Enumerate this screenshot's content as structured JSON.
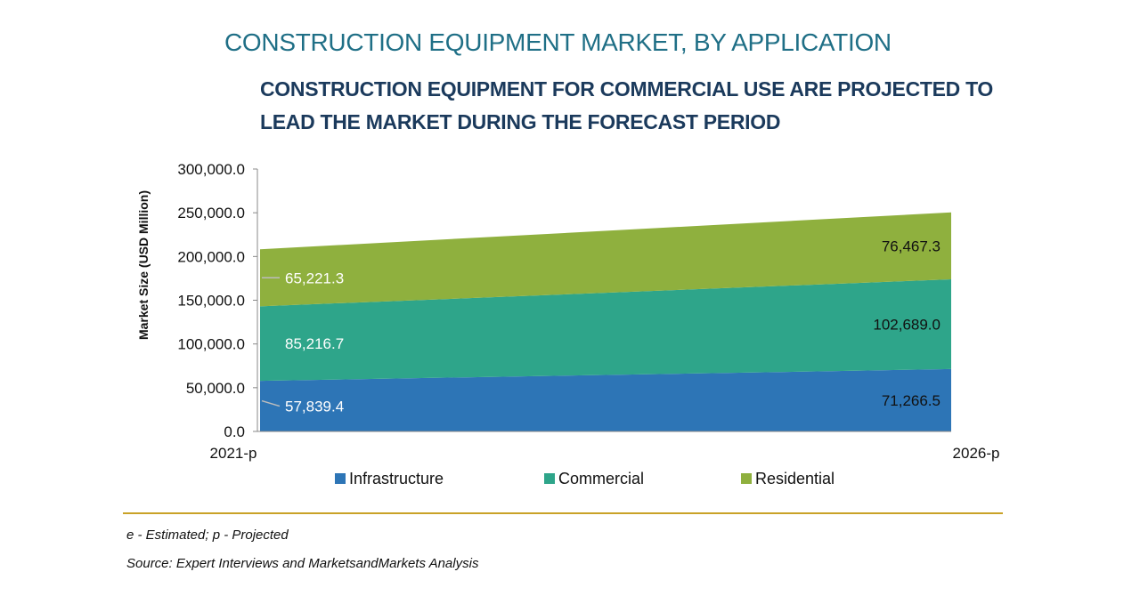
{
  "colors": {
    "Infrastructure": "#2d75b6",
    "Commercial": "#2ea58a",
    "Residential": "#8fb03e",
    "axis": "#888888",
    "title": "#1f6f86",
    "subtitle": "#1b3a5c",
    "rule": "#c9a227"
  },
  "chart_data": {
    "type": "area",
    "stacked": true,
    "title": "CONSTRUCTION EQUIPMENT MARKET, BY APPLICATION",
    "subtitle": "CONSTRUCTION EQUIPMENT FOR COMMERCIAL USE ARE PROJECTED TO LEAD THE MARKET DURING THE FORECAST PERIOD",
    "xlabel": "",
    "ylabel": "Market Size (USD Million)",
    "categories": [
      "2021-p",
      "2026-p"
    ],
    "ylim": [
      0,
      300000
    ],
    "yticks": [
      "0.0",
      "50,000.0",
      "100,000.0",
      "150,000.0",
      "200,000.0",
      "250,000.0",
      "300,000.0"
    ],
    "series": [
      {
        "name": "Infrastructure",
        "values": [
          57839.4,
          71266.5
        ],
        "labels": [
          "57,839.4",
          "71,266.5"
        ]
      },
      {
        "name": "Commercial",
        "values": [
          85216.7,
          102689.0
        ],
        "labels": [
          "85,216.7",
          "102,689.0"
        ]
      },
      {
        "name": "Residential",
        "values": [
          65221.3,
          76467.3
        ],
        "labels": [
          "65,221.3",
          "76,467.3"
        ]
      }
    ],
    "legend": "bottom"
  },
  "notes": {
    "estimated": "e - Estimated; p - Projected",
    "source": "Source: Expert Interviews and MarketsandMarkets Analysis"
  }
}
